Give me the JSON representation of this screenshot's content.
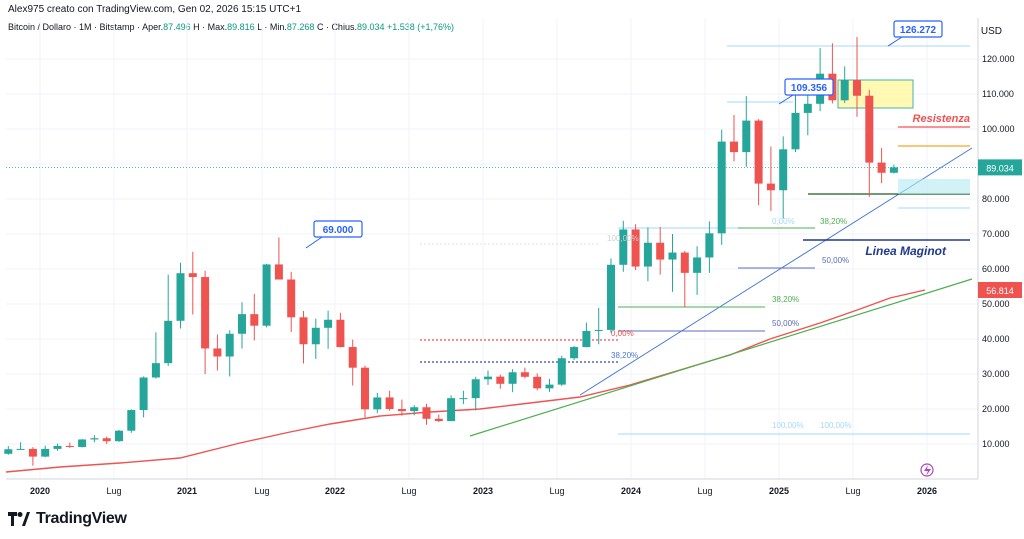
{
  "header": {
    "creator_line": "Alex975 creato con TradingView.com, Gen 02, 2026 15:15 UTC+1",
    "symbol": "Bitcoin / Dollaro · 1M · Bitstamp",
    "open_label": "Aper.",
    "open": "87.496",
    "high_label": "Max.",
    "high": "89.816",
    "low_label": "Min.",
    "low": "87.268",
    "close_label": "Chius.",
    "close": "89.034",
    "change": "+1.538 (+1,76%)"
  },
  "currency_label": "USD",
  "footer": {
    "brand": "TradingView"
  },
  "colors": {
    "up": "#26a69a",
    "down": "#ef5350",
    "ma": "#ef5350",
    "support": "#4caf50",
    "trend": "#4a79d8",
    "label": "#2962ff",
    "maginot": "#1e3a8a"
  },
  "chart_data": {
    "type": "candlestick",
    "timeframe": "1M",
    "x_labels": [
      "2020",
      "Lug",
      "2021",
      "Lug",
      "2022",
      "Lug",
      "2023",
      "Lug",
      "2024",
      "Lug",
      "2025",
      "Lug",
      "2026"
    ],
    "y_ticks": [
      10000,
      20000,
      30000,
      40000,
      50000,
      60000,
      70000,
      80000,
      90000,
      100000,
      110000,
      120000
    ],
    "y_tick_labels": [
      "10.000",
      "20.000",
      "30.000",
      "40.000",
      "50.000",
      "60.000",
      "70.000",
      "80.000",
      "90.000",
      "100.000",
      "110.000",
      "120.000"
    ],
    "ylim": [
      0,
      131000
    ],
    "candles": [
      [
        7200,
        9400,
        6900,
        8500
      ],
      [
        8500,
        10500,
        8400,
        8600
      ],
      [
        8600,
        9100,
        3800,
        6400
      ],
      [
        6400,
        9500,
        6200,
        8600
      ],
      [
        8600,
        10100,
        8100,
        9450
      ],
      [
        9450,
        10400,
        8900,
        9150
      ],
      [
        9150,
        11400,
        9000,
        11300
      ],
      [
        11300,
        12500,
        10500,
        11650
      ],
      [
        11650,
        12100,
        10000,
        10800
      ],
      [
        10800,
        14000,
        10600,
        13800
      ],
      [
        13800,
        19900,
        13200,
        19700
      ],
      [
        19700,
        29300,
        17600,
        29000
      ],
      [
        29000,
        41900,
        28700,
        33100
      ],
      [
        33100,
        58400,
        32300,
        45200
      ],
      [
        45200,
        61800,
        43000,
        58800
      ],
      [
        58800,
        64900,
        47000,
        57700
      ],
      [
        57700,
        59500,
        30000,
        37300
      ],
      [
        37300,
        41300,
        31000,
        35000
      ],
      [
        35000,
        42500,
        29300,
        41500
      ],
      [
        41500,
        50500,
        37300,
        47100
      ],
      [
        47100,
        52900,
        39600,
        43800
      ],
      [
        43800,
        61500,
        43300,
        61300
      ],
      [
        61300,
        69000,
        58000,
        57000
      ],
      [
        57000,
        59200,
        42000,
        46200
      ],
      [
        46200,
        48000,
        33000,
        38500
      ],
      [
        38500,
        45800,
        34300,
        43200
      ],
      [
        43200,
        48100,
        37200,
        45500
      ],
      [
        45500,
        47500,
        37600,
        37700
      ],
      [
        37700,
        39800,
        26700,
        31800
      ],
      [
        31800,
        32400,
        17600,
        19900
      ],
      [
        19900,
        24600,
        18800,
        23300
      ],
      [
        23300,
        25200,
        19500,
        20000
      ],
      [
        20000,
        22700,
        18100,
        19400
      ],
      [
        19400,
        21100,
        18200,
        20500
      ],
      [
        20500,
        21500,
        15500,
        17200
      ],
      [
        17200,
        18400,
        16300,
        16550
      ],
      [
        16550,
        23900,
        16500,
        23100
      ],
      [
        23100,
        25200,
        21400,
        23100
      ],
      [
        23100,
        29200,
        19600,
        28500
      ],
      [
        28500,
        31000,
        26900,
        29250
      ],
      [
        29250,
        29800,
        25800,
        27200
      ],
      [
        27200,
        31400,
        24800,
        30500
      ],
      [
        30500,
        31800,
        28800,
        29200
      ],
      [
        29200,
        30200,
        25300,
        25900
      ],
      [
        25900,
        28600,
        24900,
        26970
      ],
      [
        26970,
        35200,
        26600,
        34500
      ],
      [
        34500,
        38000,
        34000,
        37700
      ],
      [
        37700,
        44700,
        37600,
        42300
      ],
      [
        42300,
        48900,
        38500,
        42600
      ],
      [
        42600,
        63000,
        41800,
        61200
      ],
      [
        61200,
        73800,
        59200,
        71300
      ],
      [
        71300,
        72800,
        59700,
        60700
      ],
      [
        60700,
        71900,
        56500,
        67500
      ],
      [
        67500,
        72000,
        58400,
        62700
      ],
      [
        62700,
        70000,
        53500,
        64700
      ],
      [
        64700,
        65200,
        49000,
        58900
      ],
      [
        58900,
        66500,
        52600,
        63300
      ],
      [
        63300,
        73600,
        58900,
        70200
      ],
      [
        70200,
        99800,
        66900,
        96400
      ],
      [
        96400,
        104000,
        90700,
        93400
      ],
      [
        93400,
        109400,
        89200,
        102400
      ],
      [
        102400,
        102800,
        78200,
        84400
      ],
      [
        84400,
        95000,
        76600,
        82500
      ],
      [
        82500,
        97900,
        74400,
        94200
      ],
      [
        94200,
        111900,
        93400,
        104600
      ],
      [
        104600,
        110500,
        98200,
        107200
      ],
      [
        107200,
        123100,
        105100,
        115800
      ],
      [
        115800,
        124500,
        107300,
        108200
      ],
      [
        108200,
        117900,
        107400,
        114000
      ],
      [
        114000,
        126272,
        103500,
        109500
      ],
      [
        109500,
        111200,
        80600,
        90400
      ],
      [
        90400,
        94600,
        84500,
        87496
      ],
      [
        87496,
        89816,
        87268,
        89034
      ]
    ],
    "moving_average_label": "56.814",
    "last_price_label": "89.034",
    "callouts": [
      "69.000",
      "109.356",
      "126.272"
    ],
    "annotations": {
      "resistance": "Resistenza",
      "maginot": "Linea Maginot",
      "fib_high": [
        "0,00%",
        "38,20%",
        "50,00%",
        "100,00%"
      ],
      "fib_low": [
        "100,00%",
        "0,00%",
        "38,20%",
        "50,00%",
        "100,00%"
      ]
    }
  }
}
